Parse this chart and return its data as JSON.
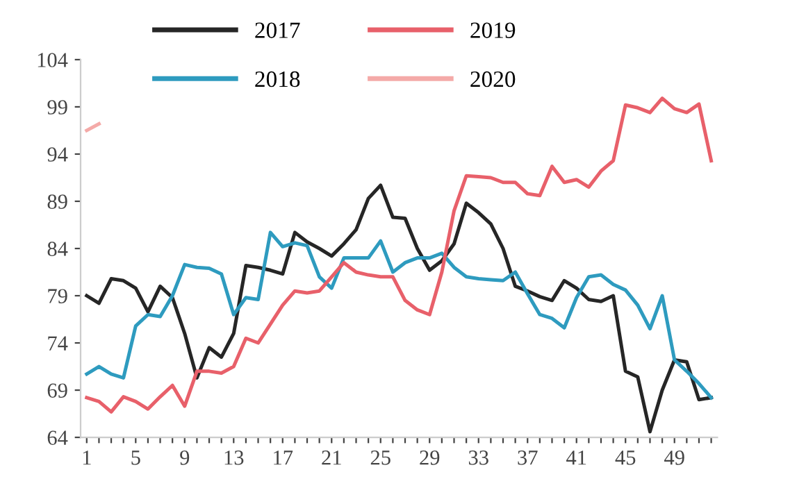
{
  "chart_data": {
    "type": "line",
    "x": [
      1,
      2,
      3,
      4,
      5,
      6,
      7,
      8,
      9,
      10,
      11,
      12,
      13,
      14,
      15,
      16,
      17,
      18,
      19,
      20,
      21,
      22,
      23,
      24,
      25,
      26,
      27,
      28,
      29,
      30,
      31,
      32,
      33,
      34,
      35,
      36,
      37,
      38,
      39,
      40,
      41,
      42,
      43,
      44,
      45,
      46,
      47,
      48,
      49,
      50,
      51,
      52
    ],
    "series": [
      {
        "name": "2017",
        "color": "#262626",
        "values": [
          79,
          78.2,
          80.8,
          80.6,
          79.8,
          77.3,
          80,
          78.8,
          75,
          70.3,
          73.5,
          72.5,
          75,
          82.2,
          82,
          81.7,
          81.3,
          85.7,
          84.7,
          84,
          83.2,
          84.5,
          86,
          89.3,
          90.7,
          87.3,
          87.2,
          84,
          81.7,
          82.7,
          84.5,
          88.8,
          87.8,
          86.6,
          84,
          80,
          79.5,
          78.9,
          78.5,
          80.6,
          79.8,
          78.6,
          78.4,
          79,
          71,
          70.4,
          64.6,
          69,
          72.2,
          72,
          68,
          68.2
        ]
      },
      {
        "name": "2018",
        "color": "#2e9bbf",
        "values": [
          70.7,
          71.5,
          70.7,
          70.3,
          75.8,
          77,
          76.8,
          79,
          82.3,
          82,
          81.9,
          81.3,
          77,
          78.8,
          78.6,
          85.7,
          84.2,
          84.6,
          84.3,
          81,
          79.8,
          83,
          83,
          83,
          84.8,
          81.5,
          82.5,
          83,
          83,
          83.5,
          82,
          81,
          80.8,
          80.7,
          80.6,
          81.5,
          79.2,
          77,
          76.6,
          75.6,
          78.8,
          81,
          81.2,
          80.2,
          79.6,
          78,
          75.5,
          79,
          72.2,
          71,
          69.7,
          68.2
        ]
      },
      {
        "name": "2019",
        "color": "#e8606a",
        "values": [
          68.2,
          67.8,
          66.7,
          68.3,
          67.8,
          67,
          68.3,
          69.5,
          67.3,
          71,
          71,
          70.8,
          71.5,
          74.5,
          74,
          76,
          78,
          79.5,
          79.3,
          79.5,
          81,
          82.5,
          81.5,
          81.2,
          81,
          81,
          78.5,
          77.5,
          77,
          81.5,
          88,
          91.7,
          91.6,
          91.5,
          91,
          91,
          89.8,
          89.6,
          92.7,
          91,
          91.3,
          90.5,
          92.2,
          93.3,
          99.2,
          98.9,
          98.4,
          99.9,
          98.8,
          98.4,
          99.3,
          93.3
        ]
      },
      {
        "name": "2020",
        "color": "#f4aaa8",
        "values": [
          96.5,
          97.2,
          null,
          null,
          null,
          null,
          null,
          null,
          null,
          null,
          null,
          null,
          null,
          null,
          null,
          null,
          null,
          null,
          null,
          null,
          null,
          null,
          null,
          null,
          null,
          null,
          null,
          null,
          null,
          null,
          null,
          null,
          null,
          null,
          null,
          null,
          null,
          null,
          null,
          null,
          null,
          null,
          null,
          null,
          null,
          null,
          null,
          null,
          null,
          null,
          null,
          null
        ]
      }
    ],
    "xlim": [
      0.5,
      52.5
    ],
    "xticks": [
      1,
      {
        "value": 2,
        "label": null
      },
      {
        "value": 3,
        "label": null
      },
      {
        "value": 4,
        "label": null
      },
      5,
      {
        "value": 6,
        "label": null
      },
      {
        "value": 7,
        "label": null
      },
      {
        "value": 8,
        "label": null
      },
      9,
      {
        "value": 10,
        "label": null
      },
      {
        "value": 11,
        "label": null
      },
      {
        "value": 12,
        "label": null
      },
      13,
      {
        "value": 14,
        "label": null
      },
      {
        "value": 15,
        "label": null
      },
      {
        "value": 16,
        "label": null
      },
      17,
      {
        "value": 18,
        "label": null
      },
      {
        "value": 19,
        "label": null
      },
      {
        "value": 20,
        "label": null
      },
      21,
      {
        "value": 22,
        "label": null
      },
      {
        "value": 23,
        "label": null
      },
      {
        "value": 24,
        "label": null
      },
      25,
      {
        "value": 26,
        "label": null
      },
      {
        "value": 27,
        "label": null
      },
      {
        "value": 28,
        "label": null
      },
      29,
      {
        "value": 30,
        "label": null
      },
      {
        "value": 31,
        "label": null
      },
      {
        "value": 32,
        "label": null
      },
      33,
      {
        "value": 34,
        "label": null
      },
      {
        "value": 35,
        "label": null
      },
      {
        "value": 36,
        "label": null
      },
      37,
      {
        "value": 38,
        "label": null
      },
      {
        "value": 39,
        "label": null
      },
      {
        "value": 40,
        "label": null
      },
      41,
      {
        "value": 42,
        "label": null
      },
      {
        "value": 43,
        "label": null
      },
      {
        "value": 44,
        "label": null
      },
      45,
      {
        "value": 46,
        "label": null
      },
      {
        "value": 47,
        "label": null
      },
      {
        "value": 48,
        "label": null
      },
      49,
      {
        "value": 50,
        "label": null
      },
      {
        "value": 51,
        "label": null
      },
      {
        "value": 52,
        "label": null
      }
    ],
    "ylim": [
      64,
      104
    ],
    "yticks": [
      64,
      69,
      74,
      79,
      84,
      89,
      94,
      99,
      104
    ],
    "grid": false,
    "legend": "top",
    "line_style": "solid",
    "marker": "none"
  }
}
